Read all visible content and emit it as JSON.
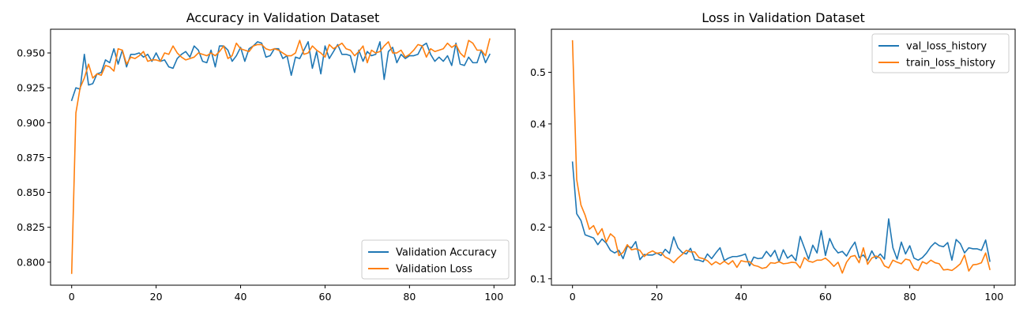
{
  "chart_data": [
    {
      "type": "line",
      "title": "Accuracy in Validation Dataset",
      "xlabel": "",
      "ylabel": "",
      "xlim": [
        -5,
        105
      ],
      "ylim": [
        0.7835,
        0.967
      ],
      "xticks": [
        0,
        20,
        40,
        60,
        80,
        100
      ],
      "xtick_labels": [
        "0",
        "20",
        "40",
        "60",
        "80",
        "100"
      ],
      "yticks": [
        0.8,
        0.825,
        0.85,
        0.875,
        0.9,
        0.925,
        0.95
      ],
      "ytick_labels": [
        "0.800",
        "0.825",
        "0.850",
        "0.875",
        "0.900",
        "0.925",
        "0.950"
      ],
      "grid": false,
      "legend_position": "lower-right",
      "series": [
        {
          "name": "Validation Accuracy",
          "color": "#1f77b4",
          "x": [
            0,
            1,
            2,
            3,
            4,
            5,
            6,
            7,
            8,
            9,
            10,
            11,
            12,
            13,
            14,
            15,
            16,
            17,
            18,
            19,
            20,
            21,
            22,
            23,
            24,
            25,
            26,
            27,
            28,
            29,
            30,
            31,
            32,
            33,
            34,
            35,
            36,
            37,
            38,
            39,
            40,
            41,
            42,
            43,
            44,
            45,
            46,
            47,
            48,
            49,
            50,
            51,
            52,
            53,
            54,
            55,
            56,
            57,
            58,
            59,
            60,
            61,
            62,
            63,
            64,
            65,
            66,
            67,
            68,
            69,
            70,
            71,
            72,
            73,
            74,
            75,
            76,
            77,
            78,
            79,
            80,
            81,
            82,
            83,
            84,
            85,
            86,
            87,
            88,
            89,
            90,
            91,
            92,
            93,
            94,
            95,
            96,
            97,
            98,
            99
          ],
          "values": [
            0.916,
            0.925,
            0.924,
            0.949,
            0.927,
            0.928,
            0.935,
            0.936,
            0.945,
            0.943,
            0.953,
            0.942,
            0.952,
            0.94,
            0.949,
            0.949,
            0.95,
            0.947,
            0.949,
            0.944,
            0.95,
            0.944,
            0.945,
            0.94,
            0.939,
            0.946,
            0.949,
            0.951,
            0.947,
            0.955,
            0.952,
            0.944,
            0.943,
            0.952,
            0.94,
            0.955,
            0.955,
            0.952,
            0.944,
            0.948,
            0.954,
            0.944,
            0.953,
            0.955,
            0.958,
            0.957,
            0.947,
            0.948,
            0.953,
            0.953,
            0.946,
            0.948,
            0.934,
            0.947,
            0.946,
            0.952,
            0.958,
            0.939,
            0.951,
            0.935,
            0.955,
            0.946,
            0.951,
            0.956,
            0.949,
            0.949,
            0.948,
            0.936,
            0.952,
            0.944,
            0.951,
            0.948,
            0.949,
            0.958,
            0.931,
            0.951,
            0.954,
            0.943,
            0.949,
            0.946,
            0.948,
            0.948,
            0.949,
            0.955,
            0.957,
            0.949,
            0.944,
            0.947,
            0.944,
            0.948,
            0.941,
            0.957,
            0.942,
            0.941,
            0.947,
            0.943,
            0.943,
            0.952,
            0.943,
            0.949
          ]
        },
        {
          "name": "Validation Loss",
          "color": "#ff7f0e",
          "x": [
            0,
            1,
            2,
            3,
            4,
            5,
            6,
            7,
            8,
            9,
            10,
            11,
            12,
            13,
            14,
            15,
            16,
            17,
            18,
            19,
            20,
            21,
            22,
            23,
            24,
            25,
            26,
            27,
            28,
            29,
            30,
            31,
            32,
            33,
            34,
            35,
            36,
            37,
            38,
            39,
            40,
            41,
            42,
            43,
            44,
            45,
            46,
            47,
            48,
            49,
            50,
            51,
            52,
            53,
            54,
            55,
            56,
            57,
            58,
            59,
            60,
            61,
            62,
            63,
            64,
            65,
            66,
            67,
            68,
            69,
            70,
            71,
            72,
            73,
            74,
            75,
            76,
            77,
            78,
            79,
            80,
            81,
            82,
            83,
            84,
            85,
            86,
            87,
            88,
            89,
            90,
            91,
            92,
            93,
            94,
            95,
            96,
            97,
            98,
            99
          ],
          "values": [
            0.792,
            0.907,
            0.925,
            0.932,
            0.942,
            0.932,
            0.935,
            0.934,
            0.941,
            0.94,
            0.937,
            0.953,
            0.952,
            0.942,
            0.947,
            0.946,
            0.948,
            0.951,
            0.944,
            0.945,
            0.945,
            0.944,
            0.95,
            0.949,
            0.955,
            0.95,
            0.947,
            0.945,
            0.946,
            0.947,
            0.95,
            0.949,
            0.948,
            0.95,
            0.948,
            0.951,
            0.955,
            0.946,
            0.948,
            0.957,
            0.953,
            0.952,
            0.951,
            0.955,
            0.956,
            0.956,
            0.953,
            0.952,
            0.953,
            0.952,
            0.95,
            0.948,
            0.948,
            0.95,
            0.959,
            0.949,
            0.95,
            0.955,
            0.952,
            0.95,
            0.947,
            0.956,
            0.953,
            0.955,
            0.957,
            0.953,
            0.952,
            0.948,
            0.951,
            0.955,
            0.943,
            0.952,
            0.95,
            0.951,
            0.955,
            0.958,
            0.95,
            0.95,
            0.952,
            0.947,
            0.949,
            0.952,
            0.956,
            0.955,
            0.947,
            0.953,
            0.951,
            0.952,
            0.953,
            0.957,
            0.954,
            0.956,
            0.95,
            0.947,
            0.959,
            0.957,
            0.952,
            0.952,
            0.948,
            0.96
          ]
        }
      ]
    },
    {
      "type": "line",
      "title": "Loss in Validation Dataset",
      "xlabel": "",
      "ylabel": "",
      "xlim": [
        -5,
        105
      ],
      "ylim": [
        0.0875,
        0.5835
      ],
      "xticks": [
        0,
        20,
        40,
        60,
        80,
        100
      ],
      "xtick_labels": [
        "0",
        "20",
        "40",
        "60",
        "80",
        "100"
      ],
      "yticks": [
        0.1,
        0.2,
        0.3,
        0.4,
        0.5
      ],
      "ytick_labels": [
        "0.1",
        "0.2",
        "0.3",
        "0.4",
        "0.5"
      ],
      "grid": false,
      "legend_position": "upper-right",
      "series": [
        {
          "name": "val_loss_history",
          "color": "#1f77b4",
          "x": [
            0,
            1,
            2,
            3,
            4,
            5,
            6,
            7,
            8,
            9,
            10,
            11,
            12,
            13,
            14,
            15,
            16,
            17,
            18,
            19,
            20,
            21,
            22,
            23,
            24,
            25,
            26,
            27,
            28,
            29,
            30,
            31,
            32,
            33,
            34,
            35,
            36,
            37,
            38,
            39,
            40,
            41,
            42,
            43,
            44,
            45,
            46,
            47,
            48,
            49,
            50,
            51,
            52,
            53,
            54,
            55,
            56,
            57,
            58,
            59,
            60,
            61,
            62,
            63,
            64,
            65,
            66,
            67,
            68,
            69,
            70,
            71,
            72,
            73,
            74,
            75,
            76,
            77,
            78,
            79,
            80,
            81,
            82,
            83,
            84,
            85,
            86,
            87,
            88,
            89,
            90,
            91,
            92,
            93,
            94,
            95,
            96,
            97,
            98,
            99
          ],
          "values": [
            0.326,
            0.226,
            0.213,
            0.185,
            0.182,
            0.179,
            0.166,
            0.177,
            0.169,
            0.155,
            0.15,
            0.155,
            0.139,
            0.163,
            0.16,
            0.172,
            0.137,
            0.147,
            0.146,
            0.146,
            0.15,
            0.145,
            0.157,
            0.149,
            0.181,
            0.16,
            0.151,
            0.148,
            0.159,
            0.137,
            0.136,
            0.133,
            0.148,
            0.139,
            0.15,
            0.16,
            0.135,
            0.14,
            0.143,
            0.143,
            0.145,
            0.148,
            0.125,
            0.142,
            0.139,
            0.14,
            0.153,
            0.143,
            0.155,
            0.133,
            0.156,
            0.14,
            0.146,
            0.135,
            0.182,
            0.16,
            0.138,
            0.165,
            0.15,
            0.193,
            0.145,
            0.178,
            0.16,
            0.15,
            0.153,
            0.144,
            0.159,
            0.171,
            0.141,
            0.146,
            0.135,
            0.154,
            0.139,
            0.148,
            0.138,
            0.216,
            0.16,
            0.138,
            0.171,
            0.148,
            0.164,
            0.14,
            0.136,
            0.141,
            0.15,
            0.162,
            0.17,
            0.164,
            0.162,
            0.17,
            0.136,
            0.176,
            0.168,
            0.15,
            0.16,
            0.158,
            0.158,
            0.155,
            0.175,
            0.134
          ]
        },
        {
          "name": "train_loss_history",
          "color": "#ff7f0e",
          "x": [
            0,
            1,
            2,
            3,
            4,
            5,
            6,
            7,
            8,
            9,
            10,
            11,
            12,
            13,
            14,
            15,
            16,
            17,
            18,
            19,
            20,
            21,
            22,
            23,
            24,
            25,
            26,
            27,
            28,
            29,
            30,
            31,
            32,
            33,
            34,
            35,
            36,
            37,
            38,
            39,
            40,
            41,
            42,
            43,
            44,
            45,
            46,
            47,
            48,
            49,
            50,
            51,
            52,
            53,
            54,
            55,
            56,
            57,
            58,
            59,
            60,
            61,
            62,
            63,
            64,
            65,
            66,
            67,
            68,
            69,
            70,
            71,
            72,
            73,
            74,
            75,
            76,
            77,
            78,
            79,
            80,
            81,
            82,
            83,
            84,
            85,
            86,
            87,
            88,
            89,
            90,
            91,
            92,
            93,
            94,
            95,
            96,
            97,
            98,
            99
          ],
          "values": [
            0.561,
            0.292,
            0.243,
            0.223,
            0.196,
            0.203,
            0.185,
            0.197,
            0.171,
            0.187,
            0.18,
            0.145,
            0.151,
            0.166,
            0.156,
            0.158,
            0.155,
            0.143,
            0.15,
            0.154,
            0.149,
            0.151,
            0.142,
            0.138,
            0.131,
            0.14,
            0.147,
            0.155,
            0.152,
            0.152,
            0.141,
            0.139,
            0.135,
            0.127,
            0.133,
            0.128,
            0.134,
            0.128,
            0.135,
            0.122,
            0.135,
            0.133,
            0.133,
            0.126,
            0.124,
            0.12,
            0.122,
            0.131,
            0.13,
            0.133,
            0.129,
            0.13,
            0.132,
            0.131,
            0.121,
            0.141,
            0.134,
            0.132,
            0.136,
            0.136,
            0.14,
            0.133,
            0.124,
            0.132,
            0.111,
            0.132,
            0.143,
            0.145,
            0.131,
            0.16,
            0.128,
            0.14,
            0.144,
            0.14,
            0.125,
            0.121,
            0.136,
            0.132,
            0.129,
            0.138,
            0.136,
            0.12,
            0.116,
            0.133,
            0.129,
            0.136,
            0.131,
            0.129,
            0.117,
            0.118,
            0.116,
            0.122,
            0.129,
            0.146,
            0.115,
            0.127,
            0.128,
            0.131,
            0.15,
            0.118
          ]
        }
      ]
    }
  ]
}
